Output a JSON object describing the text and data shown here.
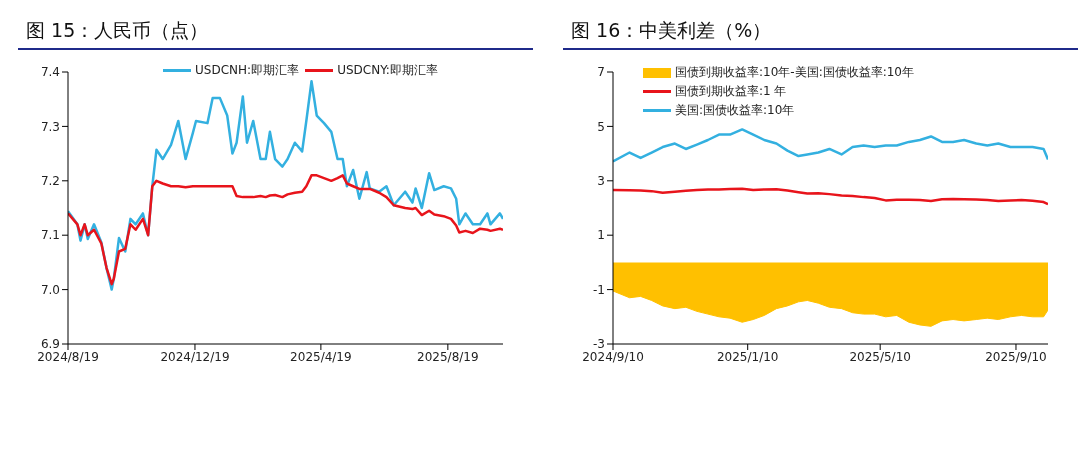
{
  "chart_data": [
    {
      "type": "line",
      "title": "图 15：人民币（点）",
      "legend": "top",
      "x": [
        "2024-08-19",
        "2024-08-28",
        "2024-08-31",
        "2024-09-04",
        "2024-09-07",
        "2024-09-13",
        "2024-09-20",
        "2024-09-25",
        "2024-09-30",
        "2024-10-02",
        "2024-10-07",
        "2024-10-13",
        "2024-10-18",
        "2024-10-23",
        "2024-10-30",
        "2024-11-04",
        "2024-11-08",
        "2024-11-12",
        "2024-11-18",
        "2024-11-26",
        "2024-12-03",
        "2024-12-10",
        "2024-12-17",
        "2024-12-20",
        "2024-12-31",
        "2025-01-05",
        "2025-01-12",
        "2025-01-19",
        "2025-01-24",
        "2025-01-28",
        "2025-02-03",
        "2025-02-07",
        "2025-02-13",
        "2025-02-20",
        "2025-02-25",
        "2025-03-01",
        "2025-03-06",
        "2025-03-13",
        "2025-03-18",
        "2025-03-25",
        "2025-04-01",
        "2025-04-05",
        "2025-04-10",
        "2025-04-15",
        "2025-04-22",
        "2025-04-29",
        "2025-05-05",
        "2025-05-10",
        "2025-05-14",
        "2025-05-20",
        "2025-05-26",
        "2025-06-02",
        "2025-06-05",
        "2025-06-14",
        "2025-06-21",
        "2025-06-28",
        "2025-07-09",
        "2025-07-16",
        "2025-07-19",
        "2025-07-25",
        "2025-08-01",
        "2025-08-06",
        "2025-08-15",
        "2025-08-22",
        "2025-08-27",
        "2025-08-30",
        "2025-09-05",
        "2025-09-12",
        "2025-09-19",
        "2025-09-26",
        "2025-09-29",
        "2025-10-08",
        "2025-10-11"
      ],
      "xlim": [
        "2024-08-19",
        "2025-10-11"
      ],
      "xticks": [
        {
          "value": "2024-08-19",
          "label": "2024/8/19"
        },
        {
          "value": "2024-12-19",
          "label": "2024/12/19"
        },
        {
          "value": "2025-04-19",
          "label": "2025/4/19"
        },
        {
          "value": "2025-08-19",
          "label": "2025/8/19"
        }
      ],
      "ylim": [
        6.9,
        7.4
      ],
      "yticks": [
        {
          "value": 6.9,
          "label": "6.9"
        },
        {
          "value": 7.0,
          "label": "7.0"
        },
        {
          "value": 7.1,
          "label": "7.1"
        },
        {
          "value": 7.2,
          "label": "7.2"
        },
        {
          "value": 7.3,
          "label": "7.3"
        },
        {
          "value": 7.4,
          "label": "7.4"
        }
      ],
      "series": [
        {
          "name": "USDCNH:即期汇率",
          "color": "#33b0e0",
          "values": [
            7.144,
            7.12,
            7.09,
            7.12,
            7.093,
            7.12,
            7.087,
            7.04,
            7.0,
            7.02,
            7.095,
            7.07,
            7.13,
            7.12,
            7.14,
            7.1,
            7.19,
            7.257,
            7.24,
            7.266,
            7.31,
            7.24,
            7.288,
            7.31,
            7.306,
            7.352,
            7.352,
            7.32,
            7.25,
            7.27,
            7.355,
            7.27,
            7.31,
            7.24,
            7.24,
            7.29,
            7.24,
            7.226,
            7.24,
            7.27,
            7.254,
            7.31,
            7.383,
            7.32,
            7.306,
            7.29,
            7.24,
            7.24,
            7.19,
            7.22,
            7.167,
            7.216,
            7.186,
            7.18,
            7.19,
            7.155,
            7.18,
            7.16,
            7.186,
            7.15,
            7.214,
            7.183,
            7.19,
            7.186,
            7.167,
            7.12,
            7.14,
            7.12,
            7.12,
            7.14,
            7.12,
            7.14,
            7.13
          ]
        },
        {
          "name": "USDCNY:即期汇率",
          "color": "#e8141b",
          "values": [
            7.14,
            7.12,
            7.1,
            7.12,
            7.1,
            7.11,
            7.085,
            7.04,
            7.01,
            7.02,
            7.07,
            7.075,
            7.12,
            7.11,
            7.13,
            7.1,
            7.19,
            7.2,
            7.195,
            7.19,
            7.19,
            7.188,
            7.19,
            7.19,
            7.19,
            7.19,
            7.19,
            7.19,
            7.19,
            7.172,
            7.17,
            7.17,
            7.17,
            7.172,
            7.17,
            7.173,
            7.174,
            7.17,
            7.175,
            7.178,
            7.18,
            7.19,
            7.21,
            7.21,
            7.205,
            7.2,
            7.205,
            7.21,
            7.195,
            7.19,
            7.185,
            7.185,
            7.185,
            7.178,
            7.17,
            7.155,
            7.15,
            7.148,
            7.15,
            7.137,
            7.145,
            7.138,
            7.135,
            7.13,
            7.118,
            7.105,
            7.108,
            7.104,
            7.112,
            7.11,
            7.108,
            7.112,
            7.11
          ]
        }
      ]
    },
    {
      "type": "line",
      "title": "图 16：中美利差（%）",
      "legend": "top",
      "x": [
        "2024-09-10",
        "2024-09-25",
        "2024-10-05",
        "2024-10-15",
        "2024-10-25",
        "2024-11-05",
        "2024-11-15",
        "2024-11-25",
        "2024-12-05",
        "2024-12-15",
        "2024-12-25",
        "2025-01-05",
        "2025-01-15",
        "2025-01-25",
        "2025-02-05",
        "2025-02-15",
        "2025-02-25",
        "2025-03-05",
        "2025-03-15",
        "2025-03-25",
        "2025-04-05",
        "2025-04-15",
        "2025-04-25",
        "2025-05-05",
        "2025-05-15",
        "2025-05-25",
        "2025-06-05",
        "2025-06-15",
        "2025-06-25",
        "2025-07-05",
        "2025-07-15",
        "2025-07-25",
        "2025-08-05",
        "2025-08-15",
        "2025-08-25",
        "2025-09-05",
        "2025-09-15",
        "2025-09-25",
        "2025-10-05",
        "2025-10-09"
      ],
      "xlim": [
        "2024-09-10",
        "2025-10-09"
      ],
      "xticks": [
        {
          "value": "2024-09-10",
          "label": "2024/9/10"
        },
        {
          "value": "2025-01-10",
          "label": "2025/1/10"
        },
        {
          "value": "2025-05-10",
          "label": "2025/5/10"
        },
        {
          "value": "2025-09-10",
          "label": "2025/9/10"
        }
      ],
      "ylim": [
        -3,
        7
      ],
      "yticks": [
        -3,
        -1,
        1,
        3,
        5,
        7
      ],
      "series": [
        {
          "name": "国债到期收益率:10年-美国:国债收益率:10年",
          "type": "area",
          "color": "#ffc000",
          "values": [
            -1.05,
            -1.3,
            -1.25,
            -1.4,
            -1.6,
            -1.7,
            -1.65,
            -1.8,
            -1.9,
            -2.0,
            -2.05,
            -2.2,
            -2.1,
            -1.95,
            -1.7,
            -1.6,
            -1.45,
            -1.4,
            -1.5,
            -1.65,
            -1.7,
            -1.85,
            -1.9,
            -1.9,
            -2.0,
            -1.95,
            -2.2,
            -2.3,
            -2.35,
            -2.15,
            -2.1,
            -2.15,
            -2.1,
            -2.05,
            -2.1,
            -2.0,
            -1.95,
            -2.0,
            -2.0,
            -1.75
          ]
        },
        {
          "name": "国债到期收益率:1 年",
          "color": "#e8141b",
          "values": [
            2.66,
            2.65,
            2.64,
            2.62,
            2.56,
            2.6,
            2.63,
            2.66,
            2.68,
            2.68,
            2.7,
            2.71,
            2.66,
            2.68,
            2.69,
            2.64,
            2.58,
            2.53,
            2.54,
            2.51,
            2.46,
            2.44,
            2.4,
            2.37,
            2.28,
            2.3,
            2.3,
            2.29,
            2.26,
            2.32,
            2.33,
            2.32,
            2.31,
            2.29,
            2.26,
            2.28,
            2.29,
            2.27,
            2.22,
            2.14
          ]
        },
        {
          "name": "美国:国债收益率:10年",
          "color": "#33b0e0",
          "values": [
            3.71,
            4.04,
            3.84,
            4.04,
            4.24,
            4.37,
            4.17,
            4.33,
            4.5,
            4.7,
            4.7,
            4.89,
            4.7,
            4.5,
            4.37,
            4.11,
            3.91,
            3.97,
            4.04,
            4.17,
            3.97,
            4.24,
            4.3,
            4.24,
            4.3,
            4.3,
            4.43,
            4.5,
            4.63,
            4.43,
            4.43,
            4.5,
            4.37,
            4.3,
            4.37,
            4.24,
            4.24,
            4.24,
            4.17,
            3.78
          ]
        }
      ]
    }
  ]
}
